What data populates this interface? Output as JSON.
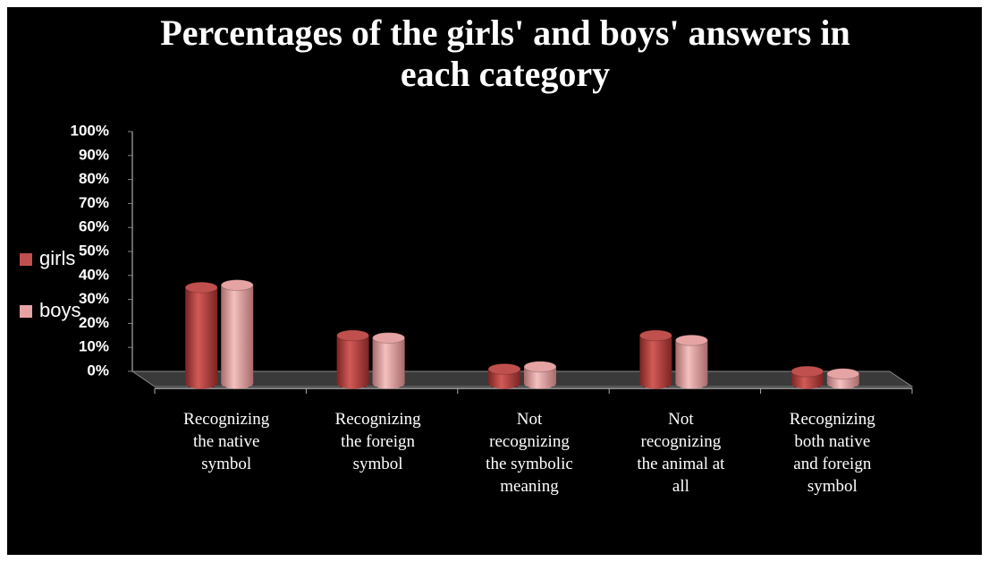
{
  "chart_data": {
    "type": "bar3d",
    "title": "Percentages of the girls' and boys' answers in each category",
    "categories": [
      "Recognizing the native symbol",
      "Recognizing the foreign symbol",
      "Not recognizing the symbolic meaning",
      "Not recognizing the animal at all",
      "Recognizing both native and foreign symbol"
    ],
    "series": [
      {
        "name": "girls",
        "color": "#c0504d",
        "values": [
          40,
          20,
          6,
          20,
          5
        ]
      },
      {
        "name": "boys",
        "color": "#e6a3a3",
        "values": [
          41,
          19,
          7,
          18,
          4
        ]
      }
    ],
    "ylim": [
      0,
      100
    ],
    "yticks": [
      {
        "value": 0,
        "label": "0%"
      },
      {
        "value": 10,
        "label": "10%"
      },
      {
        "value": 20,
        "label": "20%"
      },
      {
        "value": 30,
        "label": "30%"
      },
      {
        "value": 40,
        "label": "40%"
      },
      {
        "value": 50,
        "label": "50%"
      },
      {
        "value": 60,
        "label": "60%"
      },
      {
        "value": 70,
        "label": "70%"
      },
      {
        "value": 80,
        "label": "80%"
      },
      {
        "value": 90,
        "label": "90%"
      },
      {
        "value": 100,
        "label": "100%"
      }
    ],
    "legend": "left"
  }
}
